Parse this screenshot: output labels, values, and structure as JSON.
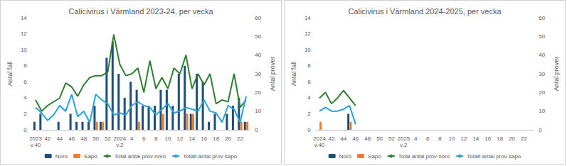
{
  "chart_data": [
    {
      "type": "bar",
      "title": "Calicivirus i Värmland 2023-24, per vecka",
      "categories": [
        "2023\nv.40",
        null,
        "42",
        null,
        "44",
        null,
        "46",
        null,
        "48",
        null,
        "50",
        null,
        "52",
        null,
        "2024\nv.2",
        null,
        "4",
        null,
        "6",
        null,
        "8",
        null,
        "10",
        null,
        "12",
        null,
        "14",
        null,
        "16",
        null,
        "18",
        null,
        "20",
        null,
        "22",
        null
      ],
      "series": [
        {
          "name": "Noro",
          "type": "bar",
          "color": "#1f4e79",
          "values": [
            1,
            2,
            0,
            0,
            1,
            0,
            2,
            1,
            1,
            1,
            3,
            1,
            9,
            11,
            7,
            4,
            6,
            5,
            3,
            3,
            3,
            5,
            5,
            3,
            7,
            8,
            2,
            7,
            6,
            1,
            2,
            0,
            2,
            3,
            4,
            1
          ]
        },
        {
          "name": "Sapo",
          "type": "bar",
          "color": "#ed7d31",
          "values": [
            0,
            0,
            0,
            0,
            0,
            0,
            0,
            0,
            0,
            0,
            1,
            1,
            0,
            0,
            0,
            0,
            0,
            1,
            0,
            0,
            0,
            2,
            0,
            0,
            0,
            2,
            2,
            0,
            0,
            0,
            0,
            0,
            0,
            0,
            1,
            1
          ]
        },
        {
          "name": "Total antal prov noro",
          "type": "line",
          "axis": "y2",
          "color": "#2e7d32",
          "values": [
            16,
            10,
            13,
            15,
            17,
            25,
            23,
            18,
            24,
            28,
            29,
            29,
            31,
            51,
            35,
            29,
            30,
            33,
            20,
            37,
            22,
            28,
            22,
            33,
            30,
            40,
            22,
            30,
            24,
            30,
            14,
            16,
            15,
            30,
            12,
            16
          ]
        },
        {
          "name": "Totalt antal prov sapo",
          "type": "line",
          "axis": "y2",
          "color": "#2aa0d8",
          "values": [
            12,
            9,
            5,
            8,
            13,
            10,
            19,
            7,
            10,
            4,
            19,
            16,
            14,
            8,
            9,
            8,
            13,
            15,
            13,
            12,
            8,
            11,
            14,
            9,
            10,
            12,
            11,
            10,
            16,
            10,
            9,
            4,
            13,
            11,
            4,
            18
          ]
        }
      ],
      "y_label": "Antal fall",
      "y2_label": "Antal prover",
      "ylim": [
        0,
        14
      ],
      "yticks": [
        0,
        2,
        4,
        6,
        8,
        10,
        12,
        14
      ],
      "y2lim": [
        0,
        60
      ],
      "y2ticks": [
        0,
        10,
        20,
        30,
        40,
        50,
        60
      ],
      "grid": false,
      "legend": "bottom"
    },
    {
      "type": "bar",
      "title": "Calicivirus i Värmland 2024-2025, per vecka",
      "categories": [
        "2024\nv.40",
        null,
        "42",
        null,
        "44",
        null,
        "46",
        null,
        "48",
        null,
        "50",
        null,
        "52",
        null,
        "2025\nv.2",
        null,
        "4",
        null,
        "6",
        null,
        "8",
        null,
        "10",
        null,
        "12",
        null,
        "14",
        null,
        "16",
        null,
        "18",
        null,
        "20",
        null,
        "22",
        null
      ],
      "series": [
        {
          "name": "Noro",
          "type": "bar",
          "color": "#1f4e79",
          "values": [
            0,
            0,
            0,
            0,
            0,
            2,
            0,
            null,
            null,
            null,
            null,
            null,
            null,
            null,
            null,
            null,
            null,
            null,
            null,
            null,
            null,
            null,
            null,
            null,
            null,
            null,
            null,
            null,
            null,
            null,
            null,
            null,
            null,
            null,
            null,
            null
          ]
        },
        {
          "name": "Sapo",
          "type": "bar",
          "color": "#ed7d31",
          "values": [
            1,
            0,
            0,
            0,
            0,
            1,
            0,
            null,
            null,
            null,
            null,
            null,
            null,
            null,
            null,
            null,
            null,
            null,
            null,
            null,
            null,
            null,
            null,
            null,
            null,
            null,
            null,
            null,
            null,
            null,
            null,
            null,
            null,
            null,
            null,
            null
          ]
        },
        {
          "name": "Total antal prov noro",
          "type": "line",
          "axis": "y2",
          "color": "#2e7d32",
          "values": [
            17,
            20,
            14,
            17,
            21,
            17,
            13,
            null,
            null,
            null,
            null,
            null,
            null,
            null,
            null,
            null,
            null,
            null,
            null,
            null,
            null,
            null,
            null,
            null,
            null,
            null,
            null,
            null,
            null,
            null,
            null,
            null,
            null,
            null,
            null,
            null
          ]
        },
        {
          "name": "Totalt antal prov sapo",
          "type": "line",
          "axis": "y2",
          "color": "#2aa0d8",
          "values": [
            10,
            12,
            10,
            10,
            11,
            13,
            3,
            null,
            null,
            null,
            null,
            null,
            null,
            null,
            null,
            null,
            null,
            null,
            null,
            null,
            null,
            null,
            null,
            null,
            null,
            null,
            null,
            null,
            null,
            null,
            null,
            null,
            null,
            null,
            null,
            null
          ]
        }
      ],
      "y_label": "Antal fall",
      "y2_label": "Antal prover",
      "ylim": [
        0,
        14
      ],
      "yticks": [
        0,
        2,
        4,
        6,
        8,
        10,
        12,
        14
      ],
      "y2lim": [
        0,
        60
      ],
      "y2ticks": [
        0,
        10,
        20,
        30,
        40,
        50,
        60
      ],
      "grid": false,
      "legend": "bottom"
    }
  ]
}
